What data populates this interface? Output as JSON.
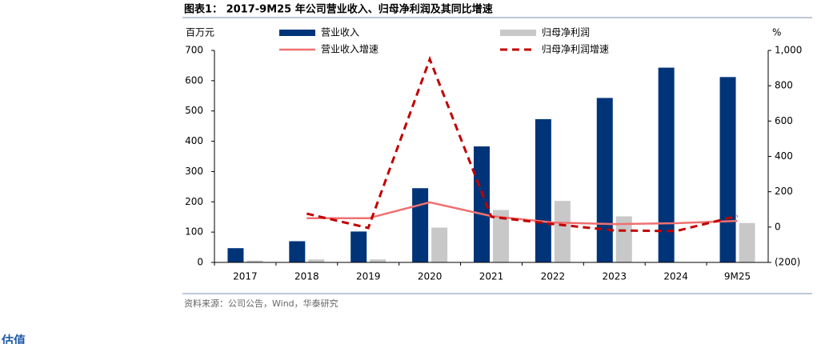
{
  "chart_data": {
    "type": "bar-line",
    "title": "图表1： 2017-9M25 年公司营业收入、归母净利润及其同比增速",
    "y_label": "百万元",
    "y2_label": "%",
    "categories": [
      "2017",
      "2018",
      "2019",
      "2020",
      "2021",
      "2022",
      "2023",
      "2024",
      "9M25"
    ],
    "series": [
      {
        "name": "营业收入",
        "type": "bar",
        "color": "#003478",
        "values": [
          47,
          70,
          102,
          245,
          383,
          473,
          543,
          643,
          612
        ]
      },
      {
        "name": "归母净利润",
        "type": "bar",
        "color": "#c8c8c8",
        "values": [
          6,
          10,
          10,
          115,
          173,
          203,
          152,
          null,
          130
        ]
      },
      {
        "name": "营业收入增速",
        "type": "line",
        "axis": "y2",
        "color": "#f07070",
        "dashed": false,
        "values": [
          null,
          50,
          50,
          140,
          62,
          26,
          17,
          22,
          35
        ]
      },
      {
        "name": "归母净利润增速",
        "type": "line",
        "axis": "y2",
        "color": "#c00000",
        "dashed": true,
        "values": [
          null,
          76,
          -5,
          950,
          58,
          17,
          -19,
          -23,
          63
        ]
      }
    ],
    "ylim": [
      0,
      700
    ],
    "yticks": [
      0,
      100,
      200,
      300,
      400,
      500,
      600,
      700
    ],
    "y2lim": [
      -200,
      1000
    ],
    "y2ticks": [
      {
        "value": -200,
        "label": "(200)"
      },
      0,
      200,
      400,
      600,
      800,
      {
        "value": 1000,
        "label": "1,000"
      }
    ],
    "source": "资料来源：公司公告，Wind，华泰研究"
  },
  "next_section": "估值"
}
